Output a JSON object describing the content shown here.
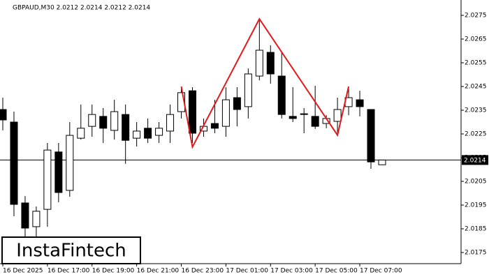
{
  "chart_data": {
    "type": "candlestick",
    "title": "GBPAUD,M30  2.0212 2.0214 2.0212 2.0214",
    "logo": "InstaFintech",
    "categories": [
      "16 Dec 2025",
      null,
      null,
      null,
      "16 Dec 17:00",
      null,
      null,
      null,
      "16 Dec 19:00",
      null,
      null,
      null,
      "16 Dec 21:00",
      null,
      null,
      null,
      "16 Dec 23:00",
      null,
      null,
      null,
      "17 Dec 01:00",
      null,
      null,
      null,
      "17 Dec 03:00",
      null,
      null,
      null,
      "17 Dec 05:00",
      null,
      null,
      null,
      "17 Dec 07:00",
      null,
      null
    ],
    "open": [
      2.02353,
      2.023,
      2.01959,
      2.01859,
      2.01932,
      2.02174,
      2.02012,
      2.02232,
      2.02282,
      2.02324,
      2.02265,
      2.02332,
      2.02232,
      2.02274,
      2.02244,
      2.02262,
      2.02344,
      2.02432,
      2.02262,
      2.02294,
      2.02282,
      2.02403,
      2.02365,
      2.02494,
      2.02594,
      2.02494,
      2.02324,
      2.02335,
      2.02324,
      2.02294,
      2.02303,
      2.02365,
      2.02394,
      2.02353,
      2.0212
    ],
    "high": [
      2.02403,
      2.02344,
      2.01988,
      2.01944,
      2.02212,
      2.02212,
      2.023,
      2.02374,
      2.02374,
      2.02359,
      2.02394,
      2.02374,
      2.023,
      2.02315,
      2.023,
      2.02374,
      2.02447,
      2.02447,
      2.02315,
      2.02394,
      2.02447,
      2.02447,
      2.02526,
      2.02729,
      2.02624,
      2.02594,
      2.02447,
      2.02359,
      2.02453,
      2.02329,
      2.02403,
      2.02447,
      2.02432,
      2.02353,
      2.0214
    ],
    "low": [
      2.02265,
      2.01903,
      2.01815,
      2.01815,
      2.01859,
      2.01962,
      2.01985,
      2.02226,
      2.02238,
      2.02212,
      2.02226,
      2.02124,
      2.02197,
      2.02212,
      2.02212,
      2.02212,
      2.02315,
      2.02212,
      2.02238,
      2.02253,
      2.02238,
      2.02282,
      2.02315,
      2.02476,
      2.02462,
      2.02315,
      2.023,
      2.02253,
      2.02271,
      2.02274,
      2.02253,
      2.02329,
      2.02324,
      2.02103,
      2.0212
    ],
    "close": [
      2.02309,
      2.01953,
      2.01853,
      2.01924,
      2.02182,
      2.02003,
      2.02244,
      2.02274,
      2.02332,
      2.02274,
      2.02344,
      2.02223,
      2.02262,
      2.02232,
      2.02274,
      2.02332,
      2.02424,
      2.02253,
      2.02282,
      2.02274,
      2.02394,
      2.02353,
      2.02503,
      2.02603,
      2.02503,
      2.02332,
      2.02315,
      2.02332,
      2.02282,
      2.02315,
      2.02353,
      2.02403,
      2.02365,
      2.02132,
      2.0214
    ],
    "up_color": "#ffffff",
    "down_color": "#000000",
    "ylim": [
      2.01703,
      2.028
    ],
    "yticks": [
      2.0175,
      2.0185,
      2.0195,
      2.0205,
      2.0215,
      2.0225,
      2.0235,
      2.0245,
      2.0255,
      2.0265,
      2.0275
    ],
    "current_price": 2.0214,
    "pattern": {
      "color": "#e31a1c",
      "x": [
        16,
        17,
        23,
        30,
        31
      ],
      "values": [
        2.0245,
        2.02195,
        2.02735,
        2.02245,
        2.0245
      ]
    }
  }
}
